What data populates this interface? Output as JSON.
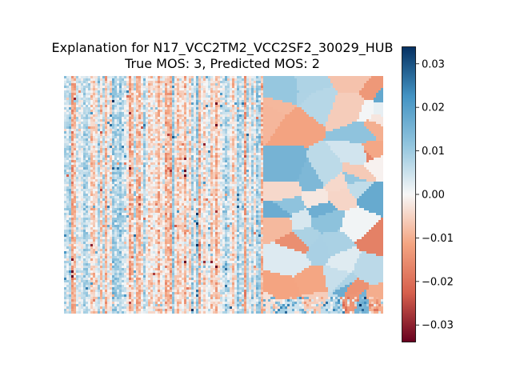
{
  "title_line1": "Explanation for N17_VCC2TM2_VCC2SF2_30029_HUB",
  "title_line2": "True MOS: 3, Predicted MOS: 2",
  "chart_data": {
    "type": "heatmap",
    "title": "Explanation for N17_VCC2TM2_VCC2SF2_30029_HUB\nTrue MOS: 3, Predicted MOS: 2",
    "xlabel": "",
    "ylabel": "",
    "axes_visible": false,
    "colormap": "RdBu",
    "colormap_colors": [
      "#67001f",
      "#d6604d",
      "#f4a582",
      "#f7f7f7",
      "#92c5de",
      "#4393c3",
      "#053061"
    ],
    "value_range": [
      -0.034,
      0.034
    ],
    "colorbar": {
      "location": "right",
      "ticks": [
        0.03,
        0.02,
        0.01,
        0.0,
        -0.01,
        -0.02,
        -0.03
      ],
      "tick_labels": [
        "0.03",
        "0.02",
        "0.01",
        "0.00",
        "−0.01",
        "−0.02",
        "−0.03"
      ]
    },
    "regions": [
      {
        "name": "left",
        "pattern": "noisy vertical streaks",
        "approx_value_range": [
          -0.02,
          0.03
        ]
      },
      {
        "name": "right",
        "pattern": "flat superpixel patches",
        "approx_value_range": [
          -0.02,
          0.015
        ]
      }
    ]
  }
}
